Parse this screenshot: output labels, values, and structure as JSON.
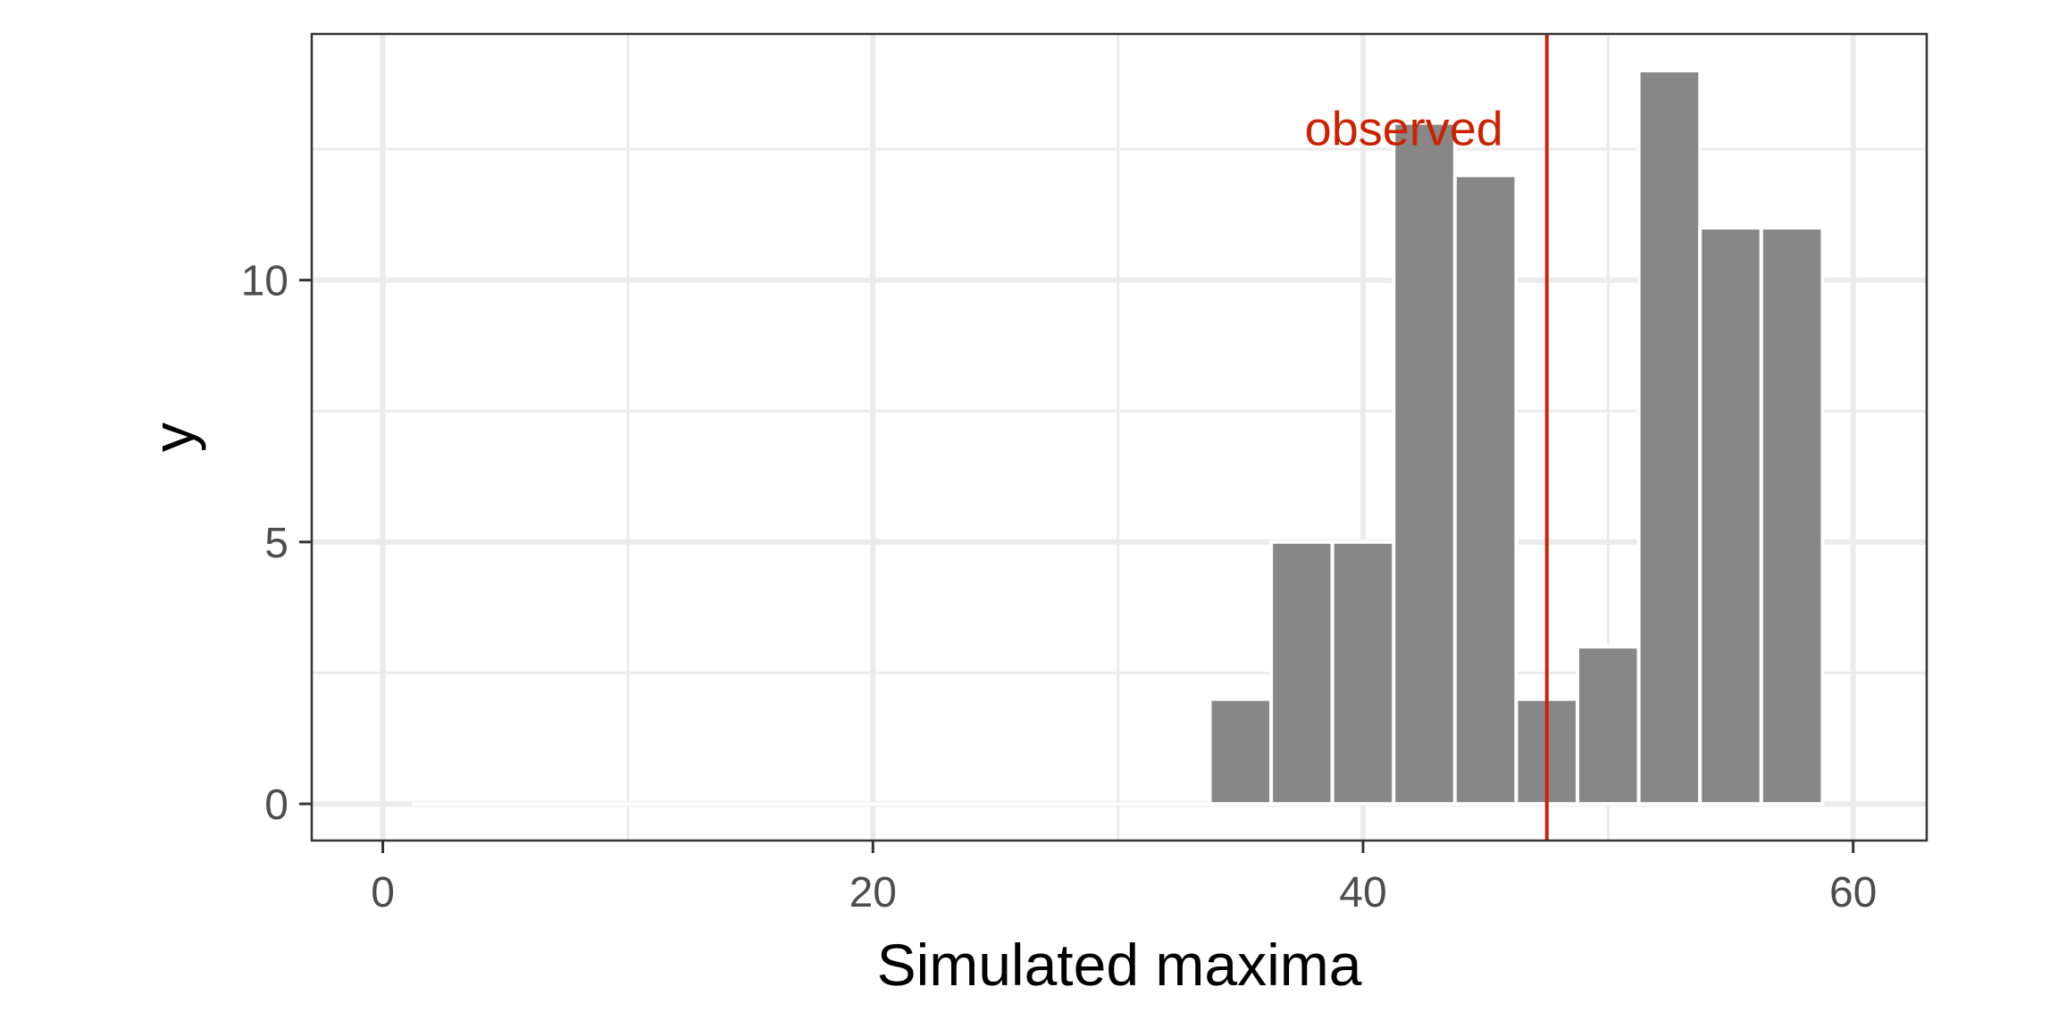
{
  "chart_data": {
    "type": "bar",
    "title": "",
    "xlabel": "Simulated maxima",
    "ylabel": "y",
    "xlim": [
      -2.9,
      63.0
    ],
    "ylim": [
      -0.7,
      14.7
    ],
    "grid": true,
    "x_ticks": [
      0,
      20,
      40,
      60
    ],
    "x_minor": [
      10,
      30,
      50
    ],
    "y_ticks": [
      0,
      5,
      10
    ],
    "y_minor": [
      2.5,
      7.5,
      12.5
    ],
    "bin_width": 2.5,
    "bars": [
      {
        "x": 2.5,
        "y": 0
      },
      {
        "x": 5,
        "y": 0
      },
      {
        "x": 7.5,
        "y": 0
      },
      {
        "x": 10,
        "y": 0
      },
      {
        "x": 12.5,
        "y": 0
      },
      {
        "x": 15,
        "y": 0
      },
      {
        "x": 17.5,
        "y": 0
      },
      {
        "x": 20,
        "y": 0
      },
      {
        "x": 22.5,
        "y": 0
      },
      {
        "x": 25,
        "y": 0
      },
      {
        "x": 27.5,
        "y": 0
      },
      {
        "x": 30,
        "y": 0
      },
      {
        "x": 32.5,
        "y": 0
      },
      {
        "x": 35,
        "y": 2
      },
      {
        "x": 37.5,
        "y": 5
      },
      {
        "x": 40,
        "y": 5
      },
      {
        "x": 42.5,
        "y": 13
      },
      {
        "x": 45,
        "y": 12
      },
      {
        "x": 47.5,
        "y": 2
      },
      {
        "x": 50,
        "y": 3
      },
      {
        "x": 52.5,
        "y": 14
      },
      {
        "x": 55,
        "y": 11
      },
      {
        "x": 57.5,
        "y": 11
      }
    ],
    "reference_line": {
      "x": 47.5,
      "label": "observed",
      "label_y": 12.9
    },
    "colors": {
      "bar": "#878787",
      "reference": "#cc2200",
      "grid": "#ebebeb",
      "panel_border": "#333333"
    }
  }
}
